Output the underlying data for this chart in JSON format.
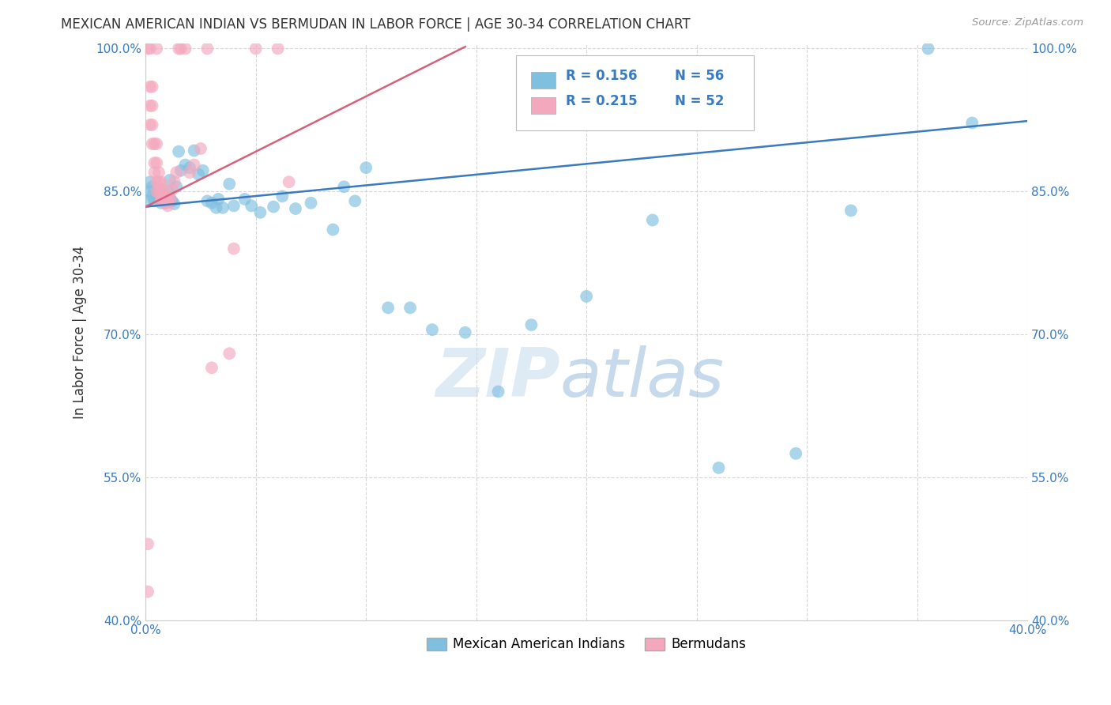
{
  "title": "MEXICAN AMERICAN INDIAN VS BERMUDAN IN LABOR FORCE | AGE 30-34 CORRELATION CHART",
  "source": "Source: ZipAtlas.com",
  "ylabel": "In Labor Force | Age 30-34",
  "xlim": [
    0.0,
    0.4
  ],
  "ylim": [
    0.4,
    1.005
  ],
  "xticks": [
    0.0,
    0.05,
    0.1,
    0.15,
    0.2,
    0.25,
    0.3,
    0.35,
    0.4
  ],
  "xticklabels": [
    "0.0%",
    "",
    "",
    "",
    "",
    "",
    "",
    "",
    "40.0%"
  ],
  "yticks": [
    0.4,
    0.55,
    0.7,
    0.85,
    1.0
  ],
  "yticklabels": [
    "40.0%",
    "55.0%",
    "70.0%",
    "85.0%",
    "100.0%"
  ],
  "blue_R": 0.156,
  "blue_N": 56,
  "pink_R": 0.215,
  "pink_N": 52,
  "blue_color": "#7fbfdf",
  "pink_color": "#f4a8be",
  "blue_line_color": "#3a7abf",
  "pink_line_color": "#d9607a",
  "legend_label_blue": "Mexican American Indians",
  "legend_label_pink": "Bermudans",
  "watermark_zip": "ZIP",
  "watermark_atlas": "atlas",
  "blue_line_x0": 0.0,
  "blue_line_y0": 0.834,
  "blue_line_x1": 0.4,
  "blue_line_y1": 0.924,
  "pink_line_x0": 0.0,
  "pink_line_y0": 0.834,
  "pink_line_x1": 0.145,
  "pink_line_y1": 1.002,
  "blue_x": [
    0.001,
    0.002,
    0.002,
    0.003,
    0.003,
    0.004,
    0.005,
    0.006,
    0.007,
    0.008,
    0.009,
    0.01,
    0.01,
    0.011,
    0.011,
    0.012,
    0.013,
    0.014,
    0.015,
    0.016,
    0.018,
    0.02,
    0.022,
    0.024,
    0.026,
    0.028,
    0.03,
    0.032,
    0.033,
    0.035,
    0.038,
    0.04,
    0.045,
    0.048,
    0.052,
    0.058,
    0.062,
    0.068,
    0.075,
    0.085,
    0.09,
    0.095,
    0.1,
    0.11,
    0.12,
    0.13,
    0.145,
    0.16,
    0.175,
    0.2,
    0.23,
    0.26,
    0.295,
    0.32,
    0.355,
    0.375
  ],
  "blue_y": [
    0.84,
    0.85,
    0.86,
    0.845,
    0.855,
    0.84,
    0.848,
    0.843,
    0.838,
    0.84,
    0.838,
    0.85,
    0.84,
    0.862,
    0.843,
    0.84,
    0.837,
    0.855,
    0.892,
    0.872,
    0.878,
    0.875,
    0.893,
    0.868,
    0.872,
    0.84,
    0.838,
    0.833,
    0.842,
    0.833,
    0.858,
    0.835,
    0.842,
    0.835,
    0.828,
    0.834,
    0.845,
    0.832,
    0.838,
    0.81,
    0.855,
    0.84,
    0.875,
    0.728,
    0.728,
    0.705,
    0.702,
    0.64,
    0.71,
    0.74,
    0.82,
    0.56,
    0.575,
    0.83,
    1.0,
    0.922
  ],
  "pink_x": [
    0.001,
    0.001,
    0.001,
    0.002,
    0.002,
    0.002,
    0.002,
    0.003,
    0.003,
    0.003,
    0.003,
    0.004,
    0.004,
    0.004,
    0.005,
    0.005,
    0.005,
    0.005,
    0.005,
    0.006,
    0.006,
    0.006,
    0.007,
    0.007,
    0.007,
    0.007,
    0.008,
    0.008,
    0.008,
    0.009,
    0.009,
    0.01,
    0.01,
    0.01,
    0.011,
    0.011,
    0.012,
    0.013,
    0.014,
    0.015,
    0.016,
    0.018,
    0.02,
    0.022,
    0.025,
    0.028,
    0.03,
    0.038,
    0.04,
    0.05,
    0.06,
    0.065
  ],
  "pink_y": [
    0.43,
    0.48,
    1.0,
    0.96,
    0.94,
    0.92,
    1.0,
    0.96,
    0.94,
    0.92,
    0.9,
    0.9,
    0.88,
    0.87,
    0.9,
    0.88,
    0.86,
    0.85,
    1.0,
    0.87,
    0.86,
    0.85,
    0.86,
    0.852,
    0.845,
    0.84,
    0.852,
    0.844,
    0.84,
    0.843,
    0.838,
    0.843,
    0.84,
    0.835,
    0.843,
    0.84,
    0.852,
    0.86,
    0.87,
    1.0,
    1.0,
    1.0,
    0.87,
    0.878,
    0.895,
    1.0,
    0.665,
    0.68,
    0.79,
    1.0,
    1.0,
    0.86
  ]
}
